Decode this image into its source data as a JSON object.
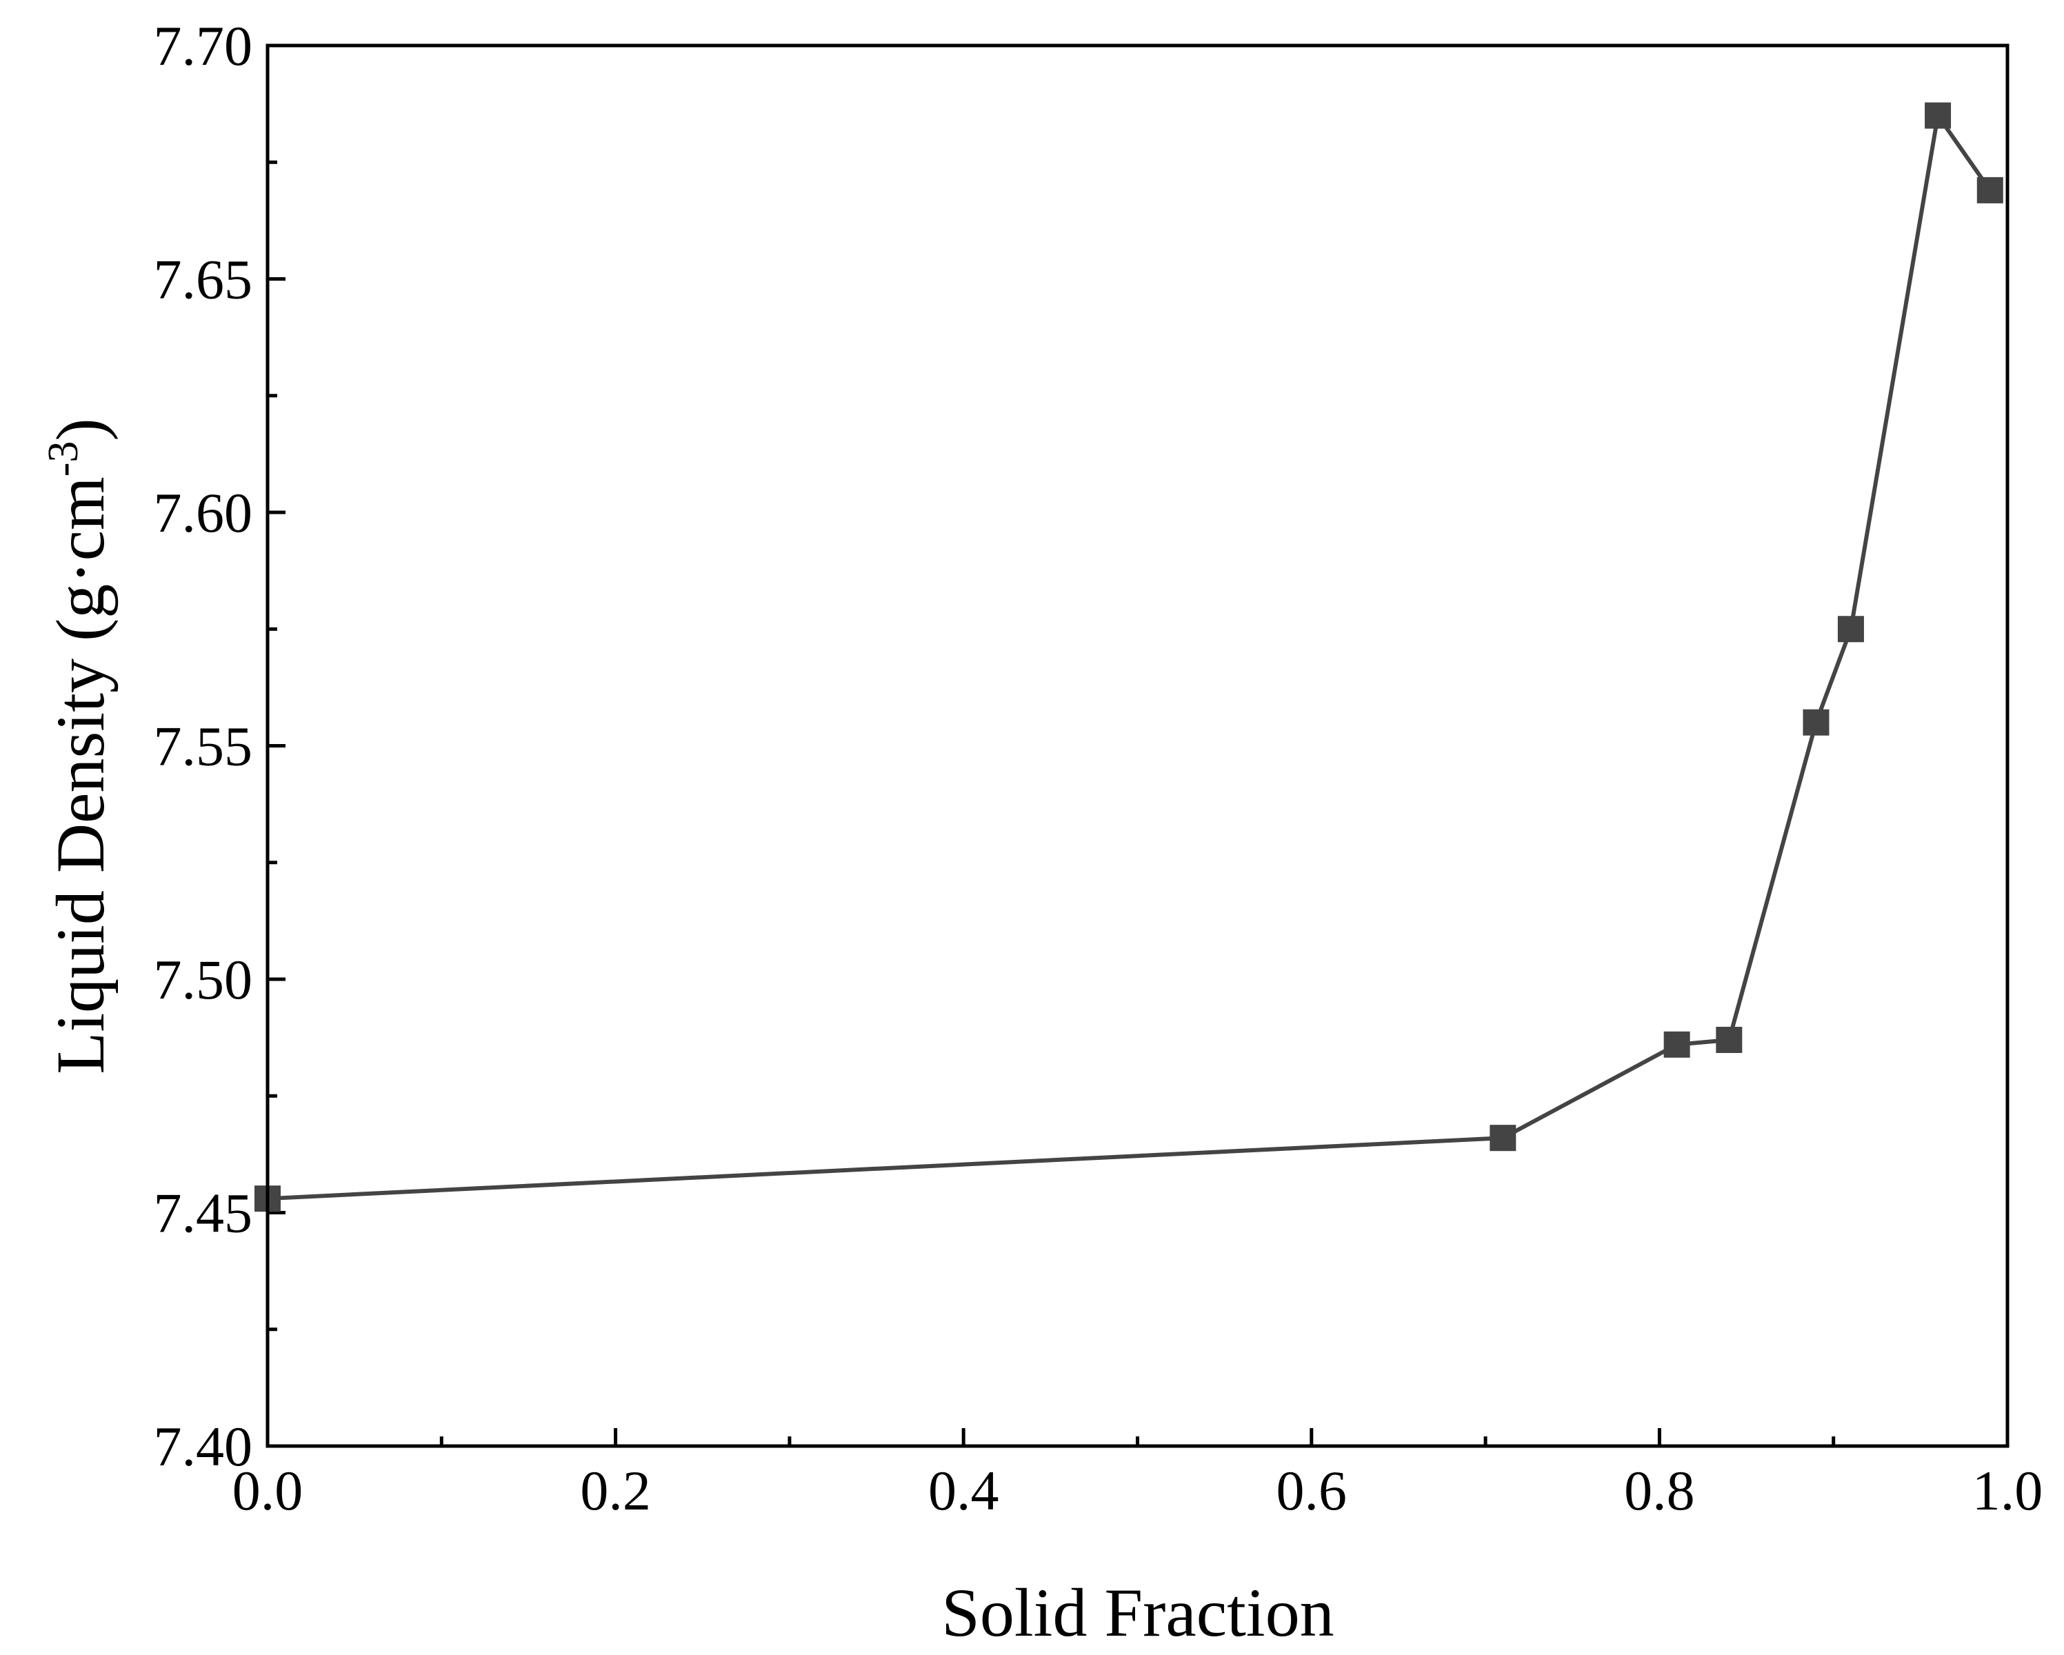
{
  "chart_data": {
    "type": "line",
    "xlabel": "Solid Fraction",
    "ylabel": "Liquid Density (g·cm⁻³)",
    "ylabel_parts": {
      "main": "Liquid Density (g·cm",
      "superscript": "-3",
      "close": ")"
    },
    "xlim": [
      0.0,
      1.0
    ],
    "ylim": [
      7.4,
      7.7
    ],
    "x_ticks": [
      "0.0",
      "0.2",
      "0.4",
      "0.6",
      "0.8",
      "1.0"
    ],
    "y_ticks": [
      "7.40",
      "7.45",
      "7.50",
      "7.55",
      "7.60",
      "7.65",
      "7.70"
    ],
    "x_minor_step": 0.1,
    "y_minor_step": 0.025,
    "grid": false,
    "series": [
      {
        "color": "#444444",
        "marker": "square",
        "points": [
          {
            "x": 0.0,
            "y": 7.453
          },
          {
            "x": 0.71,
            "y": 7.466
          },
          {
            "x": 0.81,
            "y": 7.486
          },
          {
            "x": 0.84,
            "y": 7.487
          },
          {
            "x": 0.89,
            "y": 7.555
          },
          {
            "x": 0.91,
            "y": 7.575
          },
          {
            "x": 0.96,
            "y": 7.685
          },
          {
            "x": 0.99,
            "y": 7.669
          }
        ]
      }
    ]
  }
}
